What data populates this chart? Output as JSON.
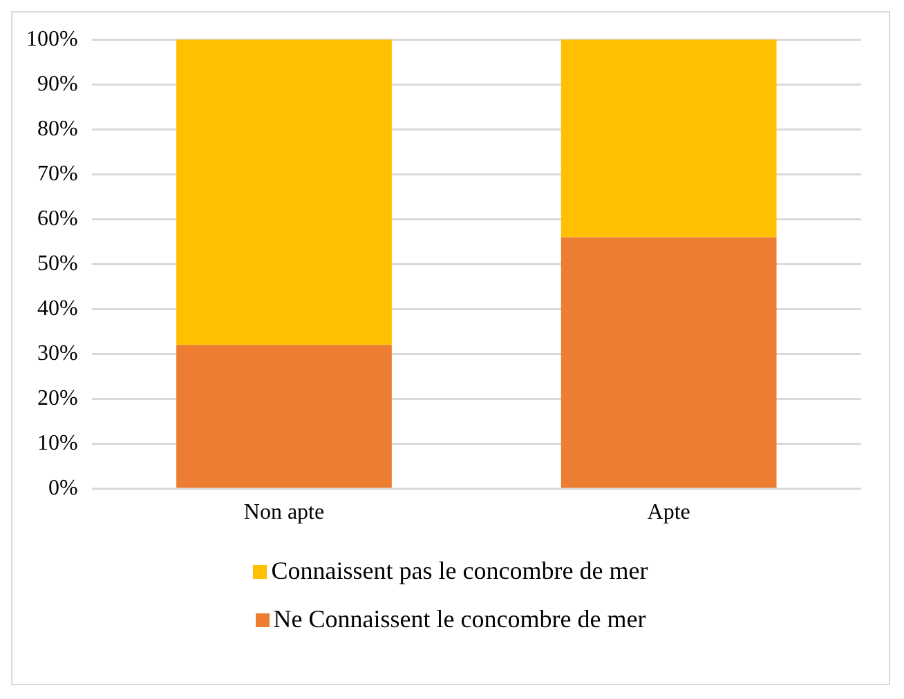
{
  "chart_data": {
    "type": "bar",
    "stacked": true,
    "categories": [
      "Non apte",
      "Apte"
    ],
    "series": [
      {
        "name": "Ne Connaissent le concombre de mer",
        "color": "#ed7d31",
        "values": [
          32,
          56
        ]
      },
      {
        "name": "Connaissent pas le concombre de mer",
        "color": "#ffc000",
        "values": [
          68,
          44
        ]
      }
    ],
    "ylim": [
      0,
      100
    ],
    "yticks": [
      {
        "value": 0,
        "label": "0%"
      },
      {
        "value": 10,
        "label": "10%"
      },
      {
        "value": 20,
        "label": "20%"
      },
      {
        "value": 30,
        "label": "30%"
      },
      {
        "value": 40,
        "label": "40%"
      },
      {
        "value": 50,
        "label": "50%"
      },
      {
        "value": 60,
        "label": "60%"
      },
      {
        "value": 70,
        "label": "70%"
      },
      {
        "value": 80,
        "label": "80%"
      },
      {
        "value": 90,
        "label": "90%"
      },
      {
        "value": 100,
        "label": "100%"
      }
    ],
    "grid": "y",
    "legend": "bottom"
  }
}
